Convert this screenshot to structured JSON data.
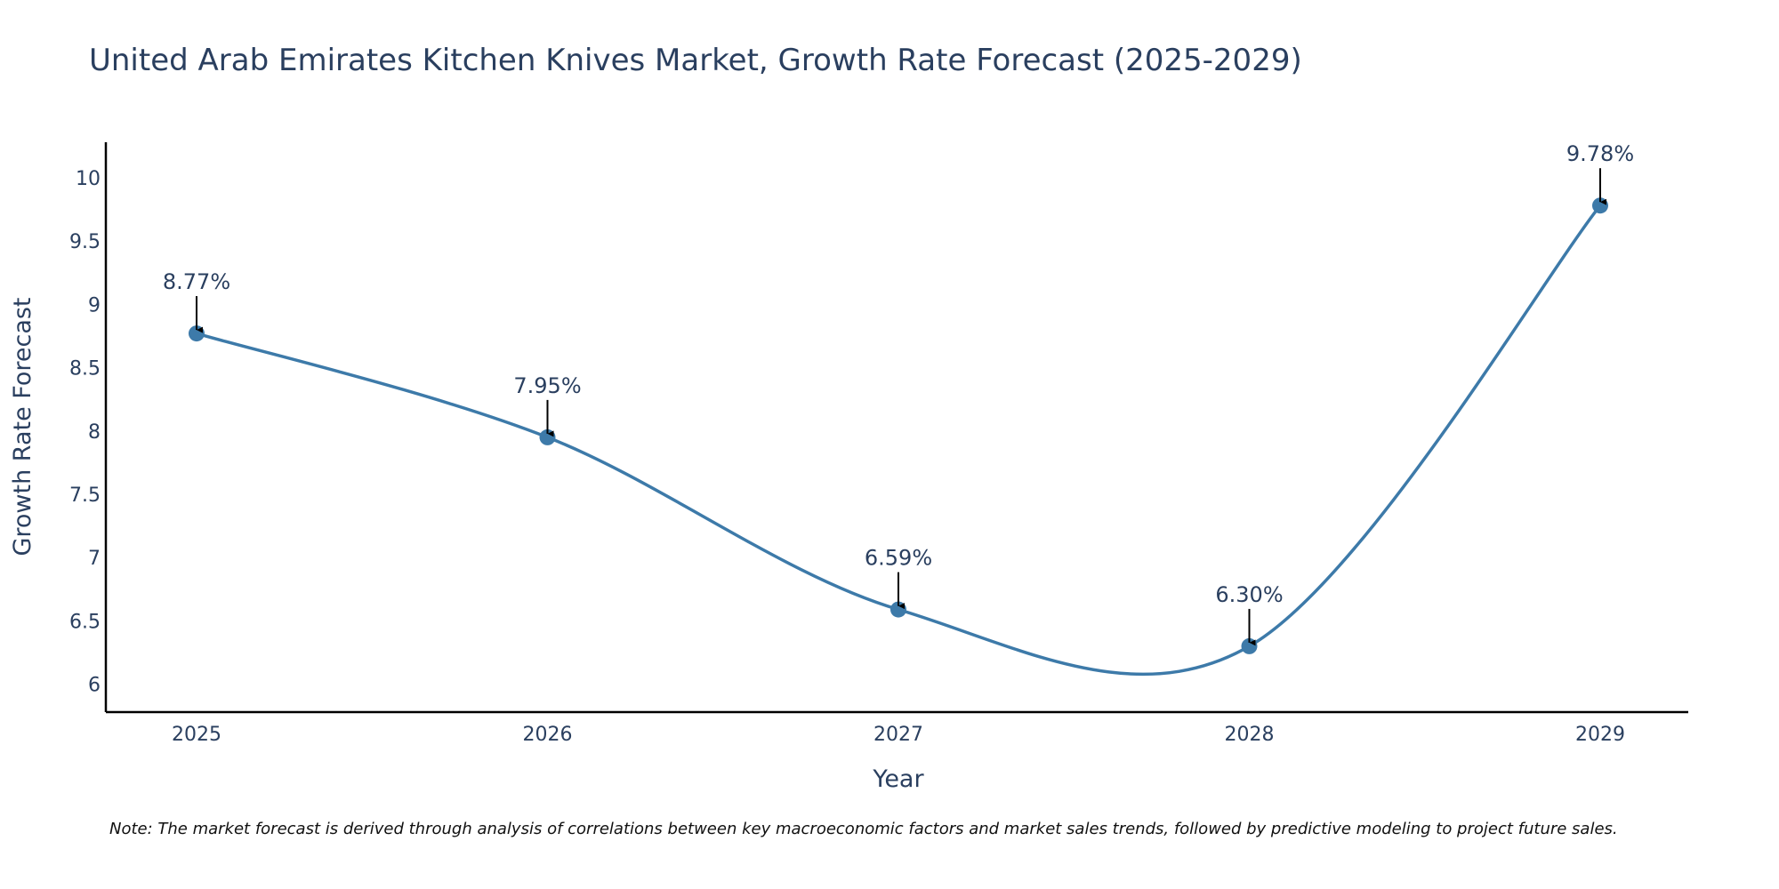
{
  "chart_data": {
    "type": "line",
    "title": "United Arab Emirates Kitchen Knives Market, Growth Rate Forecast (2025-2029)",
    "xlabel": "Year",
    "ylabel": "Growth Rate Forecast",
    "categories": [
      "2025",
      "2026",
      "2027",
      "2028",
      "2029"
    ],
    "series": [
      {
        "name": "Growth Rate Forecast",
        "values": [
          8.77,
          7.95,
          6.59,
          6.3,
          9.78
        ],
        "color": "#3d7aa9",
        "line_shape": "spline"
      }
    ],
    "annotations": [
      "8.77%",
      "7.95%",
      "6.59%",
      "6.30%",
      "9.78%"
    ],
    "y_ticks": [
      "6",
      "6.5",
      "7",
      "7.5",
      "8",
      "8.5",
      "9",
      "9.5",
      "10"
    ],
    "y_tick_values": [
      6,
      6.5,
      7,
      7.5,
      8,
      8.5,
      9,
      9.5,
      10
    ],
    "ylim": [
      5.78,
      10.28
    ],
    "grid": false,
    "note": "Note: The market forecast is derived through analysis of correlations between key macroeconomic factors and market sales trends, followed by predictive modeling to project future sales."
  }
}
